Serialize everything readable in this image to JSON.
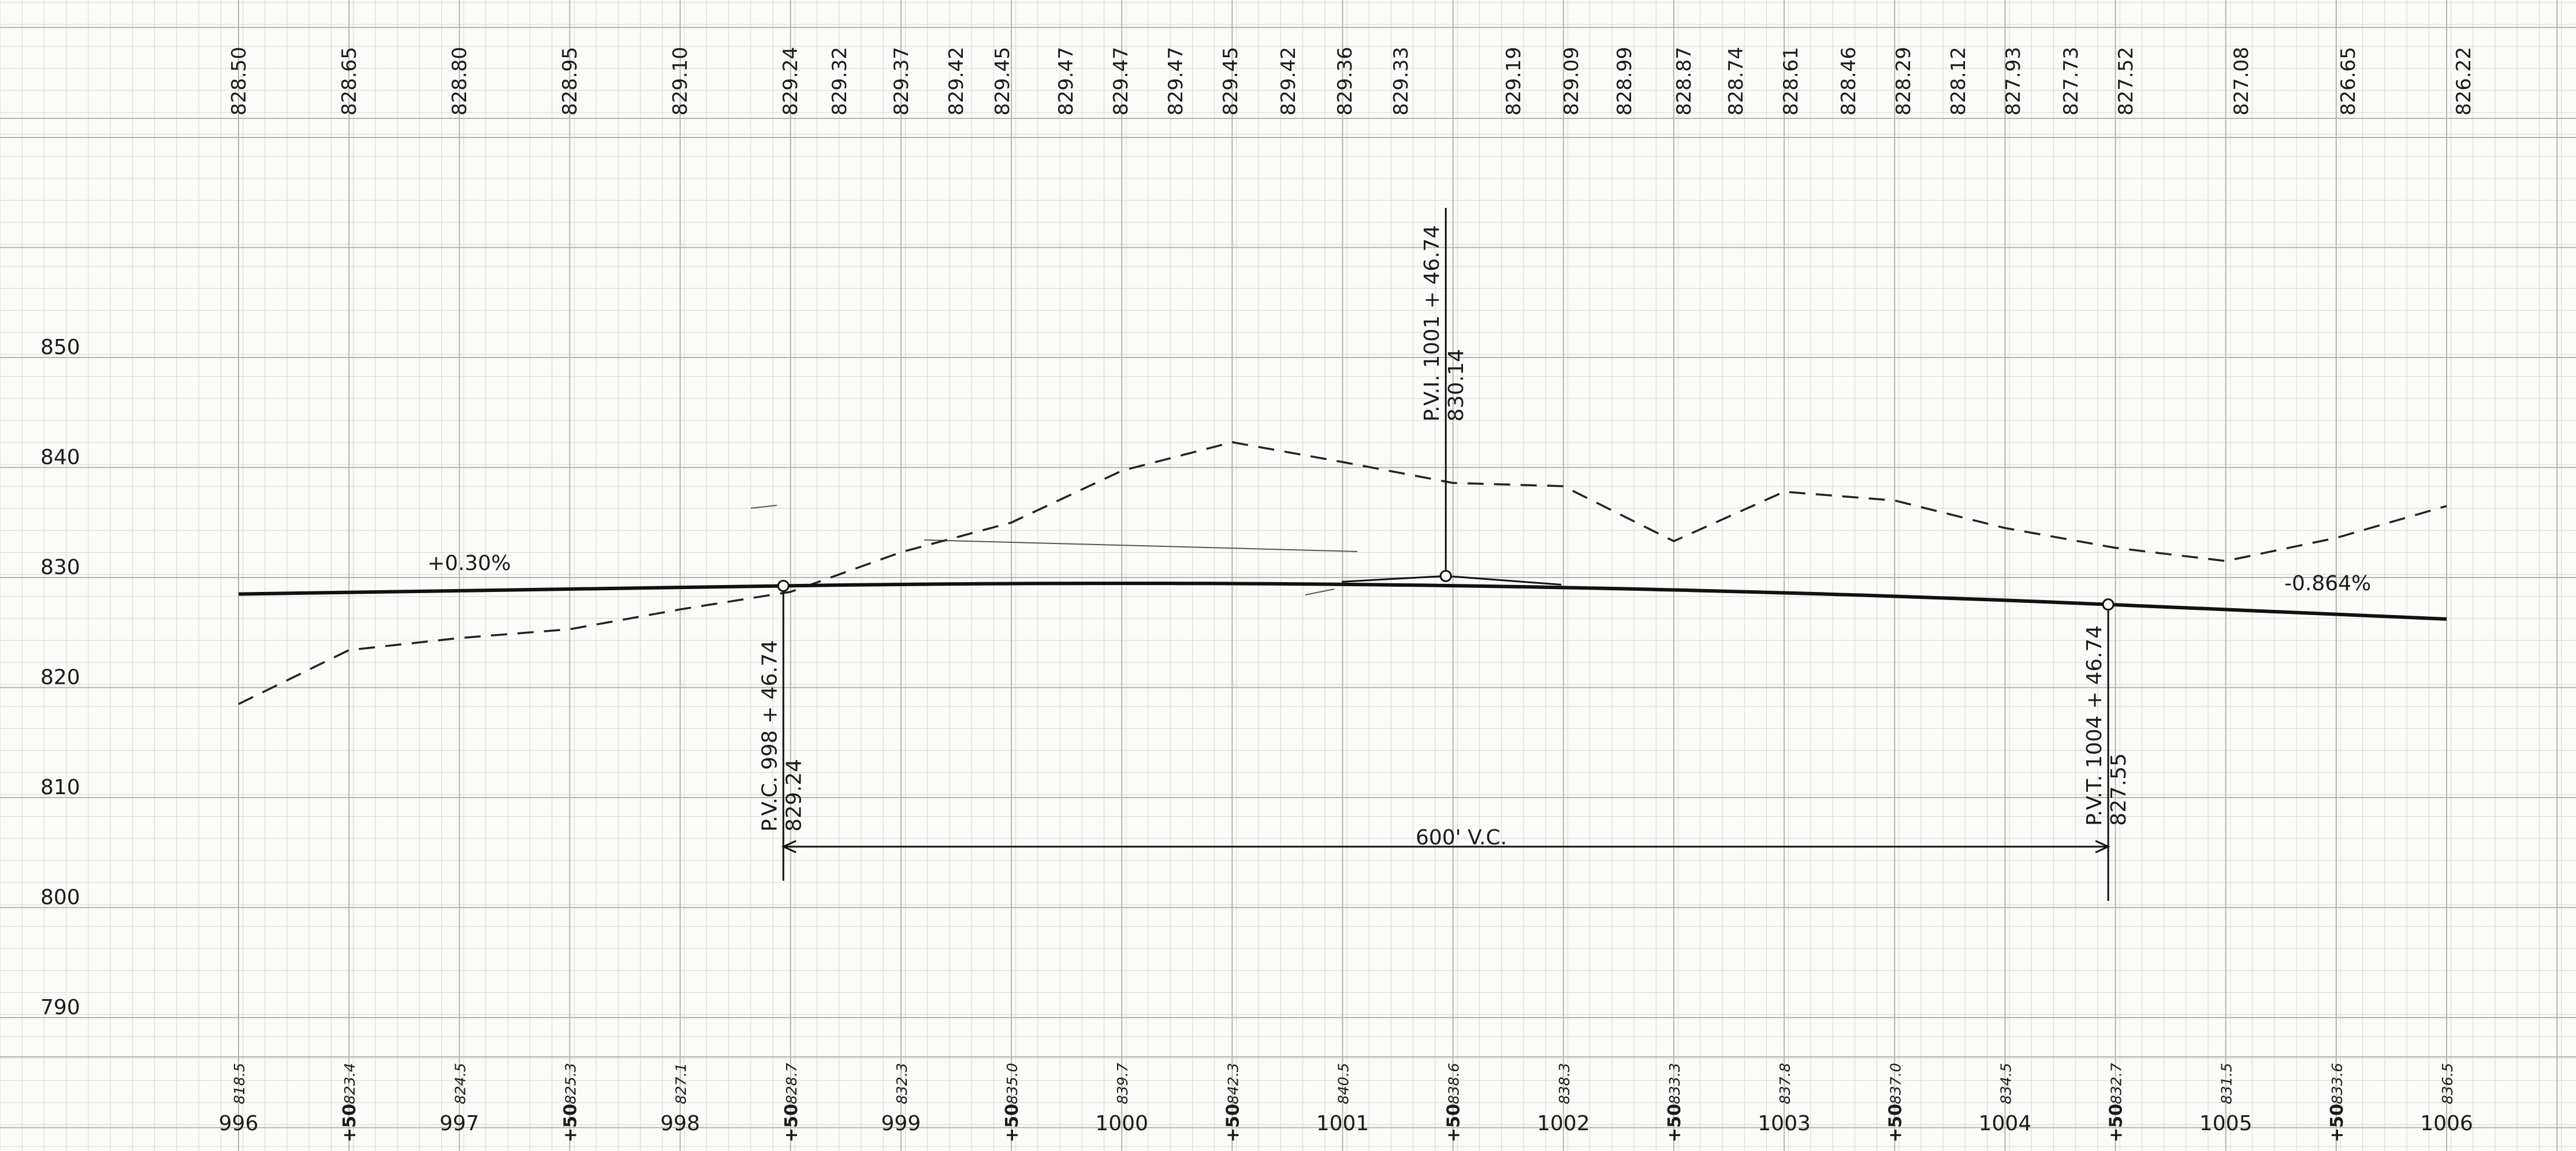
{
  "top_labels": [
    "828.50",
    "828.65",
    "828.80",
    "828.95",
    "829.10",
    "829.24",
    "829.32",
    "829.37",
    "829.42",
    "829.45",
    "829.47",
    "829.47",
    "829.47",
    "829.45",
    "829.42",
    "829.36",
    "829.33",
    "829.19",
    "829.09",
    "828.99",
    "828.87",
    "828.74",
    "828.61",
    "828.46",
    "828.29",
    "828.12",
    "827.93",
    "827.73",
    "827.52",
    "827.08",
    "826.65",
    "826.22"
  ],
  "elevation_axis": [
    "850",
    "840",
    "830",
    "820",
    "810",
    "800",
    "790"
  ],
  "ground_labels": [
    "818.5",
    "823.4",
    "824.5",
    "825.3",
    "827.1",
    "828.7",
    "832.3",
    "835.0",
    "839.7",
    "842.3",
    "840.5",
    "838.6",
    "838.3",
    "833.3",
    "837.8",
    "837.0",
    "834.5",
    "832.7",
    "831.5",
    "833.6",
    "836.5"
  ],
  "station_labels": [
    "996",
    "+50",
    "997",
    "+50",
    "998",
    "+50",
    "999",
    "+50",
    "1000",
    "+50",
    "1001",
    "+50",
    "1002",
    "+50",
    "1003",
    "+50",
    "1004",
    "+50",
    "1005",
    "+50",
    "1006"
  ],
  "grade_in_label": "+0.30%",
  "grade_out_label": "-0.864%",
  "pvc_label": "P.V.C. 998 + 46.74",
  "pvc_elev": "829.24",
  "pvi_label": "P.V.I. 1001 + 46.74",
  "pvi_elev": "830.14",
  "pvt_label": "P.V.T. 1004 + 46.74",
  "pvt_elev": "827.55",
  "vc_label": "600' V.C.",
  "chart_data": {
    "type": "line",
    "x_unit": "station (100 ft)",
    "x": [
      996.0,
      996.5,
      997.0,
      997.5,
      998.0,
      998.5,
      999.0,
      999.5,
      1000.0,
      1000.5,
      1001.0,
      1001.5,
      1002.0,
      1002.5,
      1003.0,
      1003.5,
      1004.0,
      1004.5,
      1005.0,
      1005.5,
      1006.0
    ],
    "ylim": [
      785,
      870
    ],
    "grid": true,
    "series": [
      {
        "values": [
          818.5,
          823.4,
          824.5,
          825.3,
          827.1,
          828.7,
          832.3,
          835.0,
          839.7,
          842.3,
          840.5,
          838.6,
          838.3,
          833.3,
          837.8,
          837.0,
          834.5,
          832.7,
          831.5,
          833.6,
          836.5
        ]
      }
    ],
    "alignment": {
      "pvc": {
        "station": 998.4674,
        "elevation": 829.24
      },
      "pvi": {
        "station": 1001.4674,
        "elevation": 830.14
      },
      "pvt": {
        "station": 1004.4674,
        "elevation": 827.55
      },
      "grade_in_percent": 0.3,
      "grade_out_percent": -0.864,
      "vertical_curve_length_ft": 600
    }
  }
}
